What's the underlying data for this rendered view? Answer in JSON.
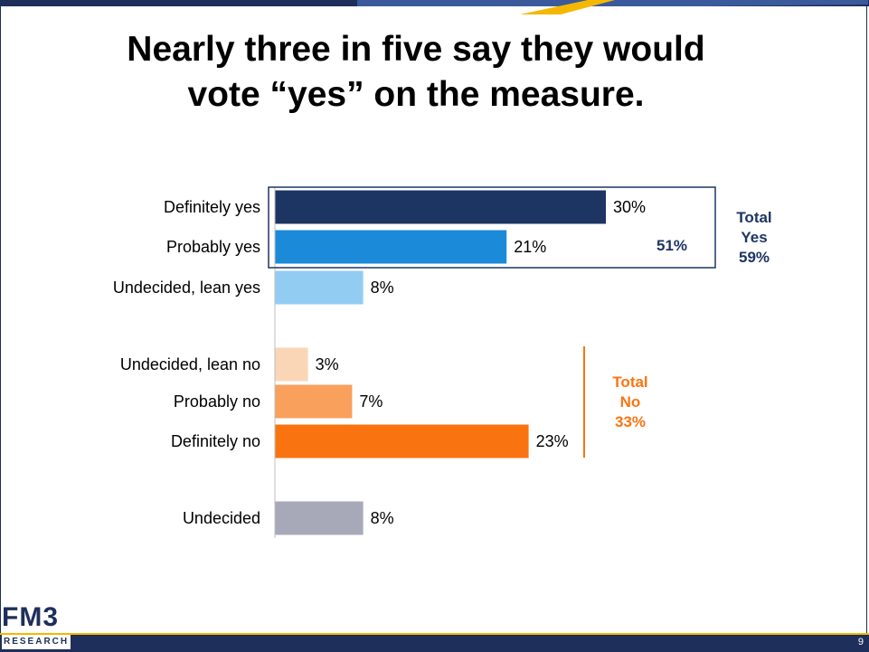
{
  "slide": {
    "title_line1": "Nearly three in five say they would",
    "title_line2": "vote “yes” on the measure.",
    "page_number": "9",
    "logo_main": "FM3",
    "logo_sub": "RESEARCH"
  },
  "colors": {
    "navy": "#1d3563",
    "blue": "#1a8ad9",
    "light_blue": "#93ccf2",
    "peach": "#fbd6b6",
    "light_orange": "#f9a05c",
    "orange": "#f97411",
    "gray": "#a8a9b8",
    "gold": "#f5b800"
  },
  "chart_data": {
    "type": "bar",
    "orientation": "horizontal",
    "xlim": [
      0,
      35
    ],
    "categories": [
      "Definitely yes",
      "Probably yes",
      "Undecided, lean yes",
      "Undecided, lean no",
      "Probably no",
      "Definitely no",
      "Undecided"
    ],
    "values": [
      30,
      21,
      8,
      3,
      7,
      23,
      8
    ],
    "value_labels": [
      "30%",
      "21%",
      "8%",
      "3%",
      "7%",
      "23%",
      "8%"
    ],
    "bar_colors": [
      "#1d3563",
      "#1a8ad9",
      "#93ccf2",
      "#fbd6b6",
      "#f9a05c",
      "#f97411",
      "#a8a9b8"
    ],
    "annotations": {
      "subtotal_yes": "51%",
      "total_yes": [
        "Total",
        "Yes",
        "59%"
      ],
      "total_no": [
        "Total",
        "No",
        "33%"
      ]
    }
  }
}
